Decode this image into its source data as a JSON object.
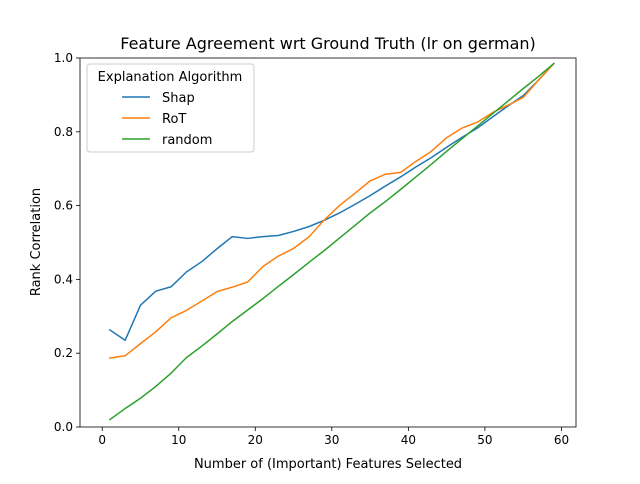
{
  "chart_data": {
    "type": "line",
    "title": "Feature Agreement wrt Ground Truth (lr on german)",
    "xlabel": "Number of (Important) Features Selected",
    "ylabel": "Rank Correlation",
    "xlim": [
      -2.9,
      61.9
    ],
    "ylim": [
      0.0,
      1.0
    ],
    "xticks": [
      0,
      10,
      20,
      30,
      40,
      50,
      60
    ],
    "xtick_labels": [
      "0",
      "10",
      "20",
      "30",
      "40",
      "50",
      "60"
    ],
    "yticks": [
      0.0,
      0.2,
      0.4,
      0.6,
      0.8,
      1.0
    ],
    "ytick_labels": [
      "0.0",
      "0.2",
      "0.4",
      "0.6",
      "0.8",
      "1.0"
    ],
    "grid": false,
    "legend": {
      "title": "Explanation Algorithm",
      "placement": "upper-left"
    },
    "series": [
      {
        "name": "Shap",
        "color": "#1f77b4",
        "x": [
          1,
          3,
          5,
          7,
          9,
          11,
          13,
          15,
          17,
          19,
          21,
          23,
          25,
          27,
          29,
          31,
          33,
          35,
          37,
          39,
          41,
          43,
          45,
          47,
          49,
          51,
          53,
          55,
          57,
          59
        ],
        "y": [
          0.263,
          0.235,
          0.33,
          0.368,
          0.38,
          0.42,
          0.448,
          0.483,
          0.516,
          0.511,
          0.516,
          0.519,
          0.53,
          0.543,
          0.56,
          0.58,
          0.603,
          0.627,
          0.653,
          0.678,
          0.705,
          0.73,
          0.758,
          0.785,
          0.81,
          0.84,
          0.87,
          0.898,
          0.94,
          0.985
        ]
      },
      {
        "name": "RoT",
        "color": "#ff7f0e",
        "x": [
          1,
          3,
          5,
          7,
          9,
          11,
          13,
          15,
          17,
          19,
          21,
          23,
          25,
          27,
          29,
          31,
          33,
          35,
          37,
          39,
          41,
          43,
          45,
          47,
          49,
          51,
          53,
          55,
          57,
          59
        ],
        "y": [
          0.187,
          0.193,
          0.226,
          0.258,
          0.296,
          0.316,
          0.341,
          0.367,
          0.379,
          0.393,
          0.435,
          0.463,
          0.484,
          0.515,
          0.561,
          0.6,
          0.633,
          0.667,
          0.685,
          0.69,
          0.72,
          0.747,
          0.784,
          0.81,
          0.826,
          0.852,
          0.872,
          0.893,
          0.94,
          0.985
        ]
      },
      {
        "name": "random",
        "color": "#2ca02c",
        "x": [
          1,
          3,
          5,
          7,
          9,
          11,
          13,
          15,
          17,
          19,
          21,
          23,
          25,
          27,
          29,
          31,
          33,
          35,
          37,
          39,
          41,
          43,
          45,
          47,
          49,
          51,
          53,
          55,
          57,
          59
        ],
        "y": [
          0.02,
          0.05,
          0.078,
          0.11,
          0.146,
          0.188,
          0.219,
          0.252,
          0.286,
          0.317,
          0.348,
          0.381,
          0.413,
          0.446,
          0.478,
          0.512,
          0.546,
          0.58,
          0.611,
          0.644,
          0.678,
          0.712,
          0.747,
          0.781,
          0.815,
          0.849,
          0.883,
          0.917,
          0.95,
          0.985
        ]
      }
    ]
  }
}
